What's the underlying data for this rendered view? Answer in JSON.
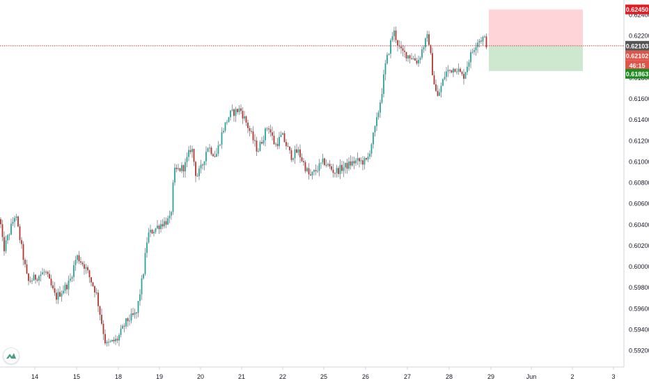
{
  "chart_data": {
    "type": "candlestick",
    "title": "",
    "xlabel": "",
    "ylabel": "",
    "ylim": [
      0.5905,
      0.6255
    ],
    "grid": false,
    "x_ticks": [
      "14",
      "15",
      "18",
      "19",
      "20",
      "21",
      "22",
      "25",
      "26",
      "27",
      "28",
      "29",
      "Jun",
      "2",
      "3"
    ],
    "y_ticks": [
      "0.59200",
      "0.59400",
      "0.59600",
      "0.59800",
      "0.60000",
      "0.60200",
      "0.60400",
      "0.60600",
      "0.60800",
      "0.61000",
      "0.61200",
      "0.61400",
      "0.61600",
      "0.61800",
      "0.62000",
      "0.62200",
      "0.62400"
    ],
    "price_labels": {
      "take_profit": "0.62450",
      "current_bid": "0.62103",
      "current_ask": "0.62102",
      "countdown": "46:15",
      "stop_loss": "0.61863"
    },
    "waypoints": [
      [
        0,
        0.6045
      ],
      [
        5,
        0.6015
      ],
      [
        22,
        0.605
      ],
      [
        40,
        0.5985
      ],
      [
        65,
        0.5995
      ],
      [
        80,
        0.597
      ],
      [
        100,
        0.5985
      ],
      [
        110,
        0.601
      ],
      [
        122,
        0.6
      ],
      [
        138,
        0.5975
      ],
      [
        152,
        0.5925
      ],
      [
        168,
        0.593
      ],
      [
        182,
        0.5948
      ],
      [
        196,
        0.5955
      ],
      [
        206,
        0.5995
      ],
      [
        212,
        0.603
      ],
      [
        230,
        0.604
      ],
      [
        245,
        0.6045
      ],
      [
        250,
        0.609
      ],
      [
        265,
        0.6095
      ],
      [
        275,
        0.6115
      ],
      [
        282,
        0.6085
      ],
      [
        290,
        0.6095
      ],
      [
        298,
        0.6115
      ],
      [
        310,
        0.6105
      ],
      [
        320,
        0.613
      ],
      [
        330,
        0.6145
      ],
      [
        345,
        0.615
      ],
      [
        355,
        0.6135
      ],
      [
        370,
        0.611
      ],
      [
        385,
        0.6135
      ],
      [
        395,
        0.6115
      ],
      [
        405,
        0.6125
      ],
      [
        418,
        0.6105
      ],
      [
        428,
        0.611
      ],
      [
        445,
        0.6085
      ],
      [
        465,
        0.61
      ],
      [
        480,
        0.609
      ],
      [
        495,
        0.6095
      ],
      [
        510,
        0.61
      ],
      [
        527,
        0.61
      ],
      [
        540,
        0.6135
      ],
      [
        548,
        0.6165
      ],
      [
        553,
        0.619
      ],
      [
        565,
        0.6225
      ],
      [
        575,
        0.6205
      ],
      [
        590,
        0.62
      ],
      [
        600,
        0.6195
      ],
      [
        608,
        0.621
      ],
      [
        615,
        0.622
      ],
      [
        622,
        0.618
      ],
      [
        628,
        0.616
      ],
      [
        640,
        0.6185
      ],
      [
        655,
        0.619
      ],
      [
        665,
        0.618
      ],
      [
        675,
        0.62
      ],
      [
        685,
        0.6215
      ],
      [
        695,
        0.6218
      ],
      [
        700,
        0.621
      ]
    ],
    "position": {
      "entry": 0.62103,
      "take_profit": 0.6245,
      "stop_loss": 0.61863
    },
    "colors": {
      "up": "#26a69a",
      "down": "#b5342c",
      "wick": "#787b86",
      "upper_zone": "#ffcdd2",
      "lower_zone": "#c8e6c9",
      "tp_label": "#e31b23",
      "bid_label": "#555555",
      "ask_label": "#e0554a",
      "countdown_label": "#e0554a",
      "sl_label": "#1e8c1e",
      "axis_text": "#131722",
      "axis_line": "#d1d4dc",
      "price_line": "#cc2b2b"
    }
  }
}
